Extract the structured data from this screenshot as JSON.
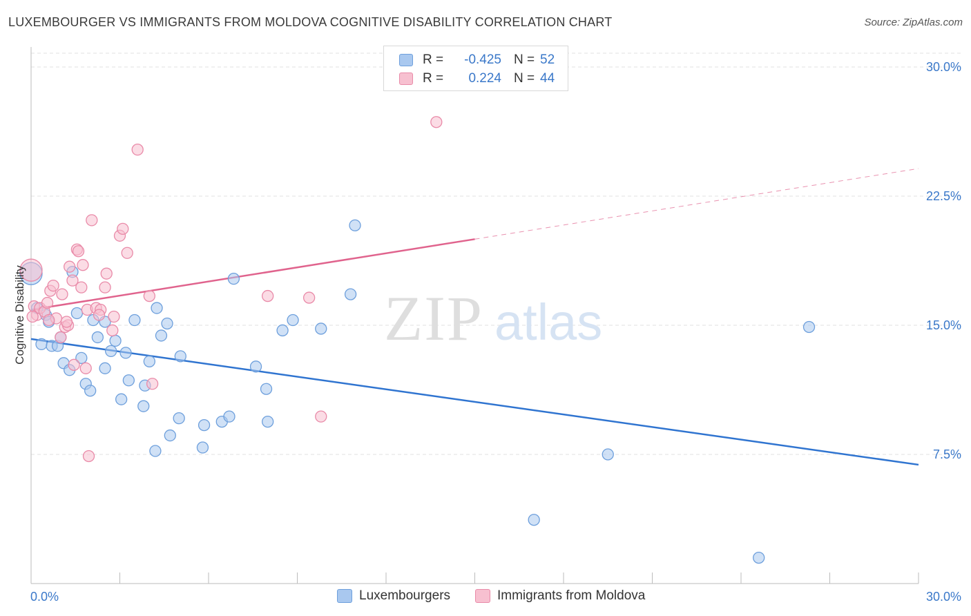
{
  "title": "LUXEMBOURGER VS IMMIGRANTS FROM MOLDOVA COGNITIVE DISABILITY CORRELATION CHART",
  "source": "Source: ZipAtlas.com",
  "watermark": {
    "zip": "ZIP",
    "atlas": "atlas"
  },
  "legend": {
    "rows": [
      {
        "r_label": "R =",
        "r_value": "-0.425",
        "n_label": "N =",
        "n_value": "52",
        "color": "#a9c8ef",
        "border": "#6d9fdc"
      },
      {
        "r_label": "R =",
        "r_value": "0.224",
        "n_label": "N =",
        "n_value": "44",
        "color": "#f7c0d0",
        "border": "#e98aa8"
      }
    ]
  },
  "bottom_legend": [
    {
      "label": "Luxembourgers",
      "color": "#a9c8ef",
      "border": "#6d9fdc"
    },
    {
      "label": "Immigrants from Moldova",
      "color": "#f7c0d0",
      "border": "#e98aa8"
    }
  ],
  "chart_data": {
    "type": "scatter",
    "title": "LUXEMBOURGER VS IMMIGRANTS FROM MOLDOVA COGNITIVE DISABILITY CORRELATION CHART",
    "xlabel": "",
    "ylabel": "Cognitive Disability",
    "xlim": [
      0,
      30
    ],
    "ylim": [
      0,
      30.8
    ],
    "x_tick_labels": [
      "0.0%",
      "30.0%"
    ],
    "y_ticks": [
      7.5,
      15.0,
      22.5,
      30.0
    ],
    "y_tick_labels": [
      "7.5%",
      "15.0%",
      "22.5%",
      "30.0%"
    ],
    "grid": true,
    "series": [
      {
        "name": "Luxembourgers",
        "color": "#6d9fdc",
        "fill": "#a9c8ef",
        "points": [
          [
            0.0,
            18.0
          ],
          [
            0.2,
            16.0
          ],
          [
            0.35,
            13.9
          ],
          [
            0.5,
            15.6
          ],
          [
            0.6,
            15.2
          ],
          [
            0.7,
            13.8
          ],
          [
            0.9,
            13.8
          ],
          [
            1.0,
            14.3
          ],
          [
            1.1,
            12.8
          ],
          [
            1.3,
            12.4
          ],
          [
            1.4,
            18.1
          ],
          [
            1.55,
            15.7
          ],
          [
            1.7,
            13.1
          ],
          [
            1.85,
            11.6
          ],
          [
            2.0,
            11.2
          ],
          [
            2.1,
            15.3
          ],
          [
            2.25,
            14.3
          ],
          [
            2.5,
            15.2
          ],
          [
            2.5,
            12.5
          ],
          [
            2.7,
            13.5
          ],
          [
            2.85,
            14.1
          ],
          [
            3.05,
            10.7
          ],
          [
            3.2,
            13.4
          ],
          [
            3.3,
            11.8
          ],
          [
            3.5,
            15.3
          ],
          [
            3.8,
            10.3
          ],
          [
            3.85,
            11.5
          ],
          [
            4.0,
            12.9
          ],
          [
            4.2,
            7.7
          ],
          [
            4.25,
            16.0
          ],
          [
            4.4,
            14.4
          ],
          [
            4.6,
            15.1
          ],
          [
            4.7,
            8.6
          ],
          [
            5.0,
            9.6
          ],
          [
            5.05,
            13.2
          ],
          [
            5.8,
            7.9
          ],
          [
            5.85,
            9.2
          ],
          [
            6.45,
            9.4
          ],
          [
            6.7,
            9.7
          ],
          [
            6.85,
            17.7
          ],
          [
            7.6,
            12.6
          ],
          [
            7.95,
            11.3
          ],
          [
            8.0,
            9.4
          ],
          [
            8.5,
            14.7
          ],
          [
            8.85,
            15.3
          ],
          [
            9.8,
            14.8
          ],
          [
            10.8,
            16.8
          ],
          [
            10.95,
            20.8
          ],
          [
            17.0,
            3.7
          ],
          [
            19.5,
            7.5
          ],
          [
            24.6,
            1.5
          ],
          [
            26.3,
            14.9
          ]
        ]
      },
      {
        "name": "Immigrants from Moldova",
        "color": "#e98aa8",
        "fill": "#f7c0d0",
        "points": [
          [
            0.0,
            18.2
          ],
          [
            0.1,
            16.1
          ],
          [
            0.2,
            15.6
          ],
          [
            0.3,
            16.0
          ],
          [
            0.45,
            15.8
          ],
          [
            0.55,
            16.3
          ],
          [
            0.65,
            17.0
          ],
          [
            0.75,
            17.3
          ],
          [
            0.85,
            15.4
          ],
          [
            1.0,
            14.3
          ],
          [
            1.05,
            16.8
          ],
          [
            1.15,
            14.9
          ],
          [
            1.25,
            15.0
          ],
          [
            1.3,
            18.4
          ],
          [
            1.4,
            17.6
          ],
          [
            1.45,
            12.7
          ],
          [
            1.55,
            19.4
          ],
          [
            1.6,
            19.3
          ],
          [
            1.7,
            17.2
          ],
          [
            1.75,
            18.5
          ],
          [
            1.85,
            12.5
          ],
          [
            1.9,
            15.9
          ],
          [
            1.95,
            7.4
          ],
          [
            2.05,
            21.1
          ],
          [
            2.2,
            16.0
          ],
          [
            2.35,
            15.9
          ],
          [
            2.5,
            17.2
          ],
          [
            2.55,
            18.0
          ],
          [
            2.75,
            14.7
          ],
          [
            2.8,
            15.5
          ],
          [
            3.0,
            20.2
          ],
          [
            3.1,
            20.6
          ],
          [
            3.25,
            19.2
          ],
          [
            3.6,
            25.2
          ],
          [
            4.0,
            16.7
          ],
          [
            4.1,
            11.6
          ],
          [
            8.0,
            16.7
          ],
          [
            9.4,
            16.6
          ],
          [
            9.8,
            9.7
          ],
          [
            13.7,
            26.8
          ],
          [
            0.05,
            15.5
          ],
          [
            1.2,
            15.2
          ],
          [
            0.6,
            15.3
          ],
          [
            2.3,
            15.6
          ]
        ]
      }
    ],
    "trend_lines": [
      {
        "series": "Luxembourgers",
        "x": [
          0,
          30
        ],
        "y": [
          14.2,
          6.9
        ],
        "style": "solid"
      },
      {
        "series": "Immigrants from Moldova",
        "x": [
          0,
          15
        ],
        "y": [
          15.9,
          20.0
        ],
        "style": "solid"
      },
      {
        "series": "Immigrants from Moldova",
        "x": [
          15,
          30
        ],
        "y": [
          20.0,
          24.1
        ],
        "style": "dashed"
      }
    ]
  }
}
